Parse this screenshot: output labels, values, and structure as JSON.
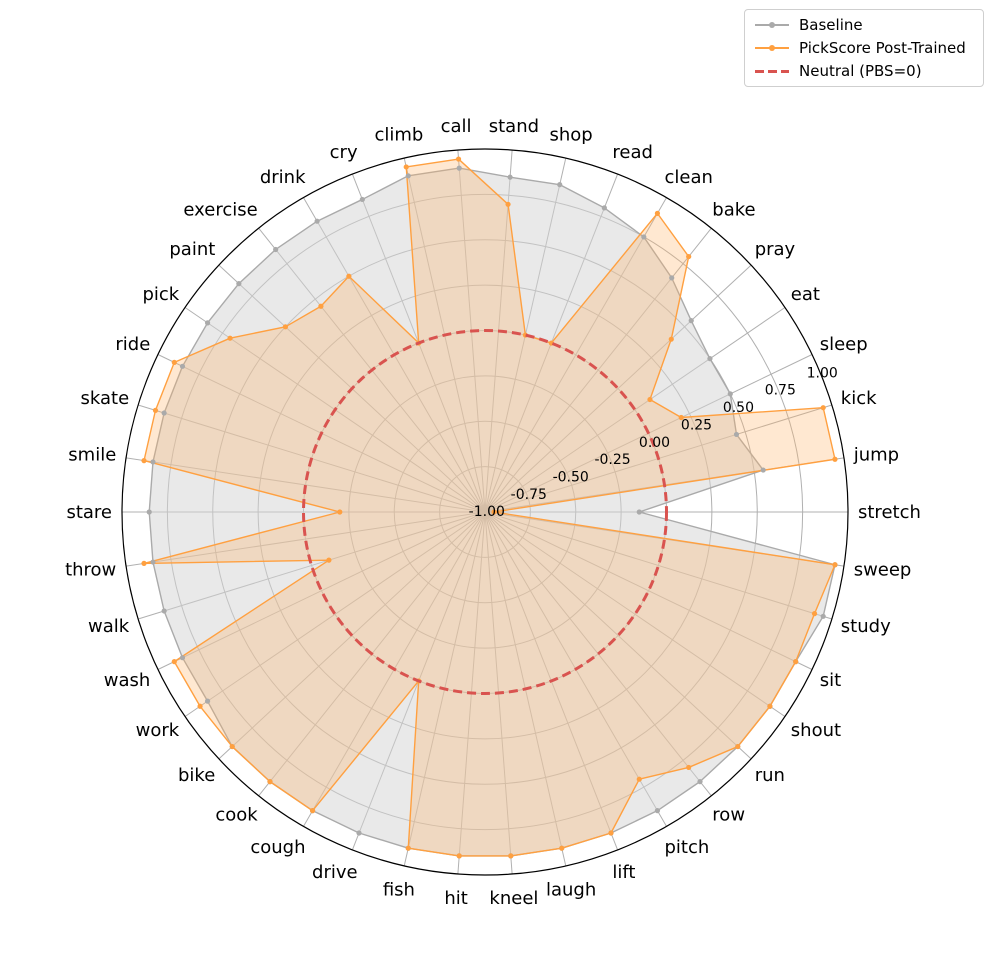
{
  "chart_data": {
    "type": "radar",
    "categories": [
      "stretch",
      "jump",
      "kick",
      "sleep",
      "eat",
      "pray",
      "bake",
      "clean",
      "read",
      "shop",
      "stand",
      "call",
      "climb",
      "cry",
      "drink",
      "exercise",
      "paint",
      "pick",
      "ride",
      "skate",
      "smile",
      "stare",
      "throw",
      "walk",
      "wash",
      "work",
      "bike",
      "cook",
      "cough",
      "drive",
      "fish",
      "hit",
      "kneel",
      "laugh",
      "lift",
      "pitch",
      "row",
      "run",
      "shout",
      "sit",
      "study",
      "sweep"
    ],
    "series": [
      {
        "name": "Baseline",
        "color": "#aaaaaa",
        "values": [
          -0.15,
          0.55,
          0.45,
          0.5,
          0.5,
          0.55,
          0.65,
          0.75,
          0.8,
          0.85,
          0.85,
          0.9,
          0.9,
          0.85,
          0.85,
          0.85,
          0.85,
          0.85,
          0.85,
          0.85,
          0.85,
          0.85,
          0.85,
          0.85,
          0.85,
          0.85,
          0.9,
          0.9,
          0.9,
          0.9,
          0.9,
          0.9,
          0.9,
          0.9,
          0.9,
          0.9,
          0.9,
          0.9,
          0.9,
          0.9,
          0.95,
          0.95
        ]
      },
      {
        "name": "PickScore Post-Trained",
        "color": "#ffa040",
        "values": [
          -0.95,
          0.95,
          0.95,
          0.2,
          0.1,
          0.4,
          0.8,
          0.9,
          0.0,
          0.0,
          0.7,
          0.95,
          0.95,
          0.0,
          0.5,
          0.45,
          0.5,
          0.7,
          0.9,
          0.9,
          0.9,
          -0.2,
          0.9,
          -0.1,
          0.9,
          0.9,
          0.9,
          0.9,
          0.9,
          0.0,
          0.9,
          0.9,
          0.9,
          0.9,
          0.9,
          0.7,
          0.8,
          0.9,
          0.9,
          0.9,
          0.9,
          0.95
        ]
      }
    ],
    "reference": {
      "name": "Neutral (PBS=0)",
      "value": 0.0,
      "color": "#d9534f"
    },
    "rlim": [
      -1.0,
      1.0
    ],
    "ticks": [
      -1.0,
      -0.75,
      -0.5,
      -0.25,
      0.0,
      0.25,
      0.5,
      0.75,
      1.0
    ],
    "tick_labels": [
      "-1.00",
      "-0.75",
      "-0.50",
      "-0.25",
      "0.00",
      "0.25",
      "0.50",
      "0.75",
      "1.00"
    ],
    "grid": true,
    "legend_position": "top-right"
  },
  "legend": {
    "baseline": "Baseline",
    "post_trained": "PickScore Post-Trained",
    "neutral": "Neutral (PBS=0)"
  }
}
